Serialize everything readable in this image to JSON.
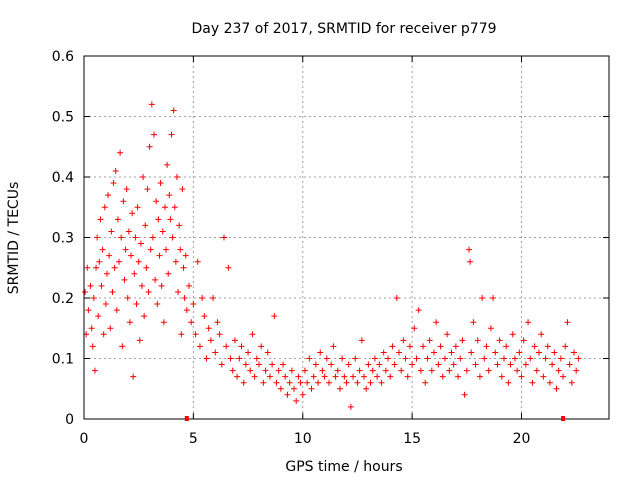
{
  "chart_data": {
    "type": "scatter",
    "title": "Day 237 of 2017, SRMTID for receiver p779",
    "xlabel": "GPS time / hours",
    "ylabel": "SRMTID / TECUs",
    "xlim": [
      0,
      24
    ],
    "ylim": [
      0,
      0.6
    ],
    "x_ticks": [
      0,
      5,
      10,
      15,
      20
    ],
    "x_tick_labels": [
      "0",
      "5",
      "10",
      "15",
      "20"
    ],
    "y_ticks": [
      0,
      0.1,
      0.2,
      0.3,
      0.4,
      0.5,
      0.6
    ],
    "y_tick_labels": [
      "0",
      "0.1",
      "0.2",
      "0.3",
      "0.4",
      "0.5",
      "0.6"
    ],
    "grid": true,
    "marker": "+",
    "color": "#ff0000",
    "series": [
      {
        "name": "SRMTID",
        "points": [
          [
            0.05,
            0.21
          ],
          [
            0.1,
            0.14
          ],
          [
            0.15,
            0.25
          ],
          [
            0.2,
            0.18
          ],
          [
            0.3,
            0.22
          ],
          [
            0.35,
            0.15
          ],
          [
            0.4,
            0.12
          ],
          [
            0.45,
            0.2
          ],
          [
            0.5,
            0.08
          ],
          [
            0.55,
            0.25
          ],
          [
            0.6,
            0.3
          ],
          [
            0.65,
            0.17
          ],
          [
            0.7,
            0.26
          ],
          [
            0.75,
            0.33
          ],
          [
            0.8,
            0.22
          ],
          [
            0.85,
            0.28
          ],
          [
            0.9,
            0.14
          ],
          [
            0.95,
            0.35
          ],
          [
            1.0,
            0.19
          ],
          [
            1.05,
            0.24
          ],
          [
            1.1,
            0.37
          ],
          [
            1.15,
            0.27
          ],
          [
            1.2,
            0.15
          ],
          [
            1.25,
            0.31
          ],
          [
            1.3,
            0.21
          ],
          [
            1.35,
            0.39
          ],
          [
            1.4,
            0.25
          ],
          [
            1.45,
            0.41
          ],
          [
            1.5,
            0.18
          ],
          [
            1.55,
            0.33
          ],
          [
            1.6,
            0.26
          ],
          [
            1.65,
            0.44
          ],
          [
            1.7,
            0.3
          ],
          [
            1.75,
            0.12
          ],
          [
            1.8,
            0.36
          ],
          [
            1.85,
            0.23
          ],
          [
            1.9,
            0.28
          ],
          [
            1.95,
            0.38
          ],
          [
            2.0,
            0.2
          ],
          [
            2.05,
            0.31
          ],
          [
            2.1,
            0.16
          ],
          [
            2.15,
            0.27
          ],
          [
            2.2,
            0.34
          ],
          [
            2.25,
            0.07
          ],
          [
            2.3,
            0.24
          ],
          [
            2.35,
            0.3
          ],
          [
            2.4,
            0.19
          ],
          [
            2.45,
            0.35
          ],
          [
            2.5,
            0.26
          ],
          [
            2.55,
            0.13
          ],
          [
            2.6,
            0.29
          ],
          [
            2.65,
            0.22
          ],
          [
            2.7,
            0.4
          ],
          [
            2.75,
            0.17
          ],
          [
            2.8,
            0.32
          ],
          [
            2.85,
            0.25
          ],
          [
            2.9,
            0.38
          ],
          [
            2.95,
            0.21
          ],
          [
            3.0,
            0.45
          ],
          [
            3.05,
            0.28
          ],
          [
            3.1,
            0.52
          ],
          [
            3.15,
            0.3
          ],
          [
            3.2,
            0.47
          ],
          [
            3.25,
            0.23
          ],
          [
            3.3,
            0.36
          ],
          [
            3.35,
            0.19
          ],
          [
            3.4,
            0.33
          ],
          [
            3.45,
            0.27
          ],
          [
            3.5,
            0.39
          ],
          [
            3.55,
            0.22
          ],
          [
            3.6,
            0.31
          ],
          [
            3.65,
            0.16
          ],
          [
            3.7,
            0.35
          ],
          [
            3.75,
            0.28
          ],
          [
            3.8,
            0.42
          ],
          [
            3.85,
            0.24
          ],
          [
            3.9,
            0.37
          ],
          [
            3.95,
            0.33
          ],
          [
            4.0,
            0.47
          ],
          [
            4.05,
            0.3
          ],
          [
            4.1,
            0.51
          ],
          [
            4.15,
            0.35
          ],
          [
            4.2,
            0.26
          ],
          [
            4.25,
            0.4
          ],
          [
            4.3,
            0.21
          ],
          [
            4.35,
            0.32
          ],
          [
            4.4,
            0.28
          ],
          [
            4.45,
            0.14
          ],
          [
            4.5,
            0.38
          ],
          [
            4.55,
            0.25
          ],
          [
            4.6,
            0.2
          ],
          [
            4.65,
            0.27
          ],
          [
            4.7,
            0.18
          ],
          [
            4.8,
            0.22
          ],
          [
            4.9,
            0.16
          ],
          [
            5.0,
            0.19
          ],
          [
            5.1,
            0.14
          ],
          [
            5.2,
            0.26
          ],
          [
            5.3,
            0.12
          ],
          [
            5.4,
            0.2
          ],
          [
            5.5,
            0.17
          ],
          [
            5.6,
            0.1
          ],
          [
            5.7,
            0.15
          ],
          [
            5.8,
            0.13
          ],
          [
            5.9,
            0.2
          ],
          [
            6.0,
            0.11
          ],
          [
            6.1,
            0.16
          ],
          [
            6.2,
            0.14
          ],
          [
            6.3,
            0.09
          ],
          [
            6.4,
            0.3
          ],
          [
            6.5,
            0.12
          ],
          [
            6.6,
            0.25
          ],
          [
            6.7,
            0.1
          ],
          [
            6.8,
            0.08
          ],
          [
            6.9,
            0.13
          ],
          [
            7.0,
            0.07
          ],
          [
            7.1,
            0.1
          ],
          [
            7.2,
            0.12
          ],
          [
            7.3,
            0.06
          ],
          [
            7.4,
            0.09
          ],
          [
            7.5,
            0.11
          ],
          [
            7.6,
            0.08
          ],
          [
            7.7,
            0.14
          ],
          [
            7.8,
            0.07
          ],
          [
            7.9,
            0.1
          ],
          [
            8.0,
            0.09
          ],
          [
            8.1,
            0.12
          ],
          [
            8.2,
            0.06
          ],
          [
            8.3,
            0.08
          ],
          [
            8.4,
            0.11
          ],
          [
            8.5,
            0.07
          ],
          [
            8.6,
            0.09
          ],
          [
            8.7,
            0.17
          ],
          [
            8.8,
            0.06
          ],
          [
            8.9,
            0.08
          ],
          [
            9.0,
            0.05
          ],
          [
            9.1,
            0.09
          ],
          [
            9.2,
            0.07
          ],
          [
            9.3,
            0.04
          ],
          [
            9.4,
            0.06
          ],
          [
            9.5,
            0.08
          ],
          [
            9.6,
            0.05
          ],
          [
            9.7,
            0.03
          ],
          [
            9.8,
            0.07
          ],
          [
            9.9,
            0.06
          ],
          [
            10.0,
            0.04
          ],
          [
            10.1,
            0.08
          ],
          [
            10.2,
            0.06
          ],
          [
            10.3,
            0.1
          ],
          [
            10.4,
            0.05
          ],
          [
            10.5,
            0.07
          ],
          [
            10.6,
            0.09
          ],
          [
            10.7,
            0.06
          ],
          [
            10.8,
            0.11
          ],
          [
            10.9,
            0.08
          ],
          [
            11.0,
            0.07
          ],
          [
            11.1,
            0.1
          ],
          [
            11.2,
            0.06
          ],
          [
            11.3,
            0.09
          ],
          [
            11.4,
            0.12
          ],
          [
            11.5,
            0.07
          ],
          [
            11.6,
            0.08
          ],
          [
            11.7,
            0.05
          ],
          [
            11.8,
            0.1
          ],
          [
            11.9,
            0.07
          ],
          [
            12.0,
            0.06
          ],
          [
            12.1,
            0.09
          ],
          [
            12.2,
            0.02
          ],
          [
            12.3,
            0.07
          ],
          [
            12.4,
            0.1
          ],
          [
            12.5,
            0.06
          ],
          [
            12.6,
            0.08
          ],
          [
            12.7,
            0.13
          ],
          [
            12.8,
            0.07
          ],
          [
            12.9,
            0.05
          ],
          [
            13.0,
            0.09
          ],
          [
            13.1,
            0.06
          ],
          [
            13.2,
            0.08
          ],
          [
            13.3,
            0.1
          ],
          [
            13.4,
            0.07
          ],
          [
            13.5,
            0.09
          ],
          [
            13.6,
            0.06
          ],
          [
            13.7,
            0.11
          ],
          [
            13.8,
            0.08
          ],
          [
            13.9,
            0.1
          ],
          [
            14.0,
            0.07
          ],
          [
            14.1,
            0.12
          ],
          [
            14.2,
            0.09
          ],
          [
            14.3,
            0.2
          ],
          [
            14.4,
            0.11
          ],
          [
            14.5,
            0.08
          ],
          [
            14.6,
            0.13
          ],
          [
            14.7,
            0.1
          ],
          [
            14.8,
            0.07
          ],
          [
            14.9,
            0.12
          ],
          [
            15.0,
            0.09
          ],
          [
            15.1,
            0.15
          ],
          [
            15.2,
            0.1
          ],
          [
            15.3,
            0.18
          ],
          [
            15.4,
            0.08
          ],
          [
            15.5,
            0.12
          ],
          [
            15.6,
            0.06
          ],
          [
            15.7,
            0.1
          ],
          [
            15.8,
            0.13
          ],
          [
            15.9,
            0.08
          ],
          [
            16.0,
            0.11
          ],
          [
            16.1,
            0.16
          ],
          [
            16.2,
            0.09
          ],
          [
            16.3,
            0.12
          ],
          [
            16.4,
            0.07
          ],
          [
            16.5,
            0.1
          ],
          [
            16.6,
            0.14
          ],
          [
            16.7,
            0.08
          ],
          [
            16.8,
            0.11
          ],
          [
            16.9,
            0.09
          ],
          [
            17.0,
            0.12
          ],
          [
            17.1,
            0.07
          ],
          [
            17.2,
            0.1
          ],
          [
            17.3,
            0.13
          ],
          [
            17.4,
            0.04
          ],
          [
            17.5,
            0.08
          ],
          [
            17.6,
            0.28
          ],
          [
            17.65,
            0.26
          ],
          [
            17.7,
            0.11
          ],
          [
            17.8,
            0.16
          ],
          [
            17.9,
            0.09
          ],
          [
            18.0,
            0.13
          ],
          [
            18.1,
            0.07
          ],
          [
            18.2,
            0.2
          ],
          [
            18.3,
            0.1
          ],
          [
            18.4,
            0.12
          ],
          [
            18.5,
            0.08
          ],
          [
            18.6,
            0.15
          ],
          [
            18.7,
            0.2
          ],
          [
            18.8,
            0.11
          ],
          [
            18.9,
            0.09
          ],
          [
            19.0,
            0.13
          ],
          [
            19.1,
            0.07
          ],
          [
            19.2,
            0.1
          ],
          [
            19.3,
            0.12
          ],
          [
            19.4,
            0.06
          ],
          [
            19.5,
            0.09
          ],
          [
            19.6,
            0.14
          ],
          [
            19.7,
            0.1
          ],
          [
            19.8,
            0.08
          ],
          [
            19.9,
            0.11
          ],
          [
            20.0,
            0.07
          ],
          [
            20.1,
            0.13
          ],
          [
            20.2,
            0.09
          ],
          [
            20.3,
            0.16
          ],
          [
            20.4,
            0.1
          ],
          [
            20.5,
            0.06
          ],
          [
            20.6,
            0.12
          ],
          [
            20.7,
            0.08
          ],
          [
            20.8,
            0.11
          ],
          [
            20.9,
            0.14
          ],
          [
            21.0,
            0.07
          ],
          [
            21.1,
            0.1
          ],
          [
            21.2,
            0.12
          ],
          [
            21.3,
            0.06
          ],
          [
            21.4,
            0.09
          ],
          [
            21.5,
            0.11
          ],
          [
            21.6,
            0.05
          ],
          [
            21.7,
            0.08
          ],
          [
            21.8,
            0.1
          ],
          [
            21.9,
            0.07
          ],
          [
            22.0,
            0.12
          ],
          [
            22.1,
            0.16
          ],
          [
            22.2,
            0.09
          ],
          [
            22.3,
            0.06
          ],
          [
            22.4,
            0.11
          ],
          [
            22.5,
            0.08
          ],
          [
            22.6,
            0.1
          ]
        ]
      }
    ],
    "axis_markers": [
      {
        "x": 4.7,
        "y": 0
      },
      {
        "x": 21.9,
        "y": 0
      }
    ]
  }
}
